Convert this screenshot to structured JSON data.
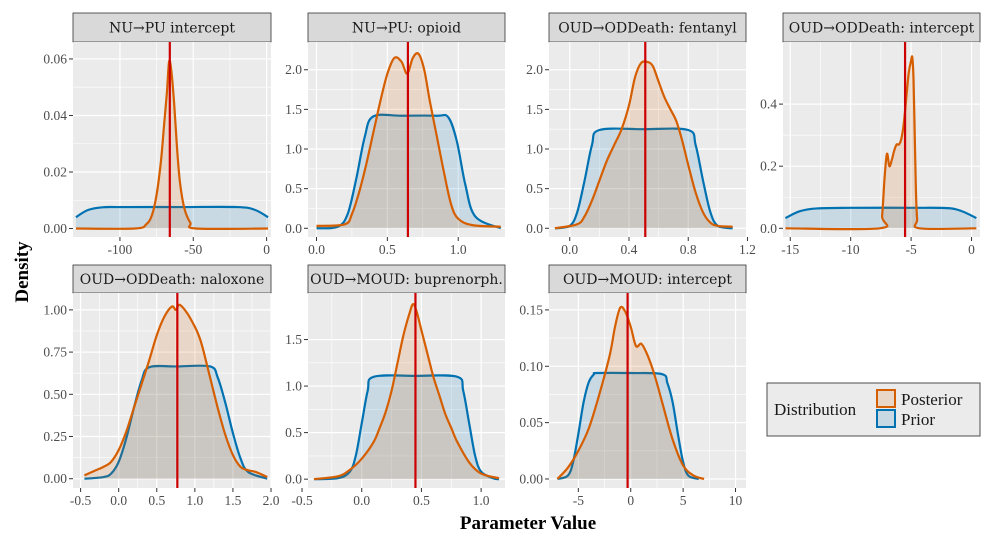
{
  "chart_data": {
    "type": "area",
    "xlabel": "Parameter Value",
    "ylabel": "Density",
    "legend": {
      "title": "Distribution",
      "position": "right",
      "entries": [
        {
          "name": "Posterior",
          "color": "#D55E00"
        },
        {
          "name": "Prior",
          "color": "#0072B2"
        }
      ]
    },
    "colors": {
      "posterior": "#D55E00",
      "prior": "#0072B2",
      "reference_line": "#CC0000",
      "panel_bg": "#EBEBEB",
      "strip_bg": "#D9D9D9"
    },
    "panels": [
      {
        "title": "NU→PU intercept",
        "xlim": [
          -132,
          3
        ],
        "ylim": [
          -0.003,
          0.066
        ],
        "xticks": [
          -100,
          -50,
          0
        ],
        "xtick_labels": [
          "-100",
          "-50",
          "0"
        ],
        "yticks": [
          0.0,
          0.02,
          0.04,
          0.06
        ],
        "ytick_labels": [
          "0.00",
          "0.02",
          "0.04",
          "0.06"
        ],
        "vline": -66,
        "prior": {
          "x": [
            -130,
            -122,
            -112,
            -100,
            -60,
            -20,
            -8,
            1
          ],
          "y": [
            0.004,
            0.0065,
            0.0075,
            0.0076,
            0.0076,
            0.0076,
            0.0066,
            0.004
          ]
        },
        "posterior": {
          "x": [
            -130,
            -90,
            -82,
            -78,
            -75,
            -72,
            -70,
            -68,
            -66.5,
            -65,
            -63,
            -61,
            -59,
            -56,
            -52,
            -48,
            1
          ],
          "y": [
            0.0,
            0.0,
            0.0015,
            0.005,
            0.012,
            0.024,
            0.036,
            0.048,
            0.059,
            0.056,
            0.044,
            0.028,
            0.016,
            0.007,
            0.002,
            0.0,
            0.0
          ]
        }
      },
      {
        "title": "NU→PU: opioid",
        "xlim": [
          -0.06,
          1.33
        ],
        "ylim": [
          -0.11,
          2.35
        ],
        "xticks": [
          0.0,
          0.5,
          1.0
        ],
        "xtick_labels": [
          "0.0",
          "0.5",
          "1.0"
        ],
        "yticks": [
          0.0,
          0.5,
          1.0,
          1.5,
          2.0
        ],
        "ytick_labels": [
          "0.0",
          "0.5",
          "1.0",
          "1.5",
          "2.0"
        ],
        "vline": 0.645,
        "prior": {
          "x": [
            0.0,
            0.15,
            0.22,
            0.28,
            0.34,
            0.4,
            0.6,
            0.85,
            0.93,
            0.99,
            1.05,
            1.12,
            1.3
          ],
          "y": [
            0.0,
            0.02,
            0.18,
            0.62,
            1.15,
            1.41,
            1.42,
            1.42,
            1.4,
            1.1,
            0.55,
            0.15,
            0.0
          ]
        },
        "posterior": {
          "x": [
            0.0,
            0.2,
            0.25,
            0.3,
            0.35,
            0.4,
            0.45,
            0.5,
            0.55,
            0.6,
            0.64,
            0.68,
            0.72,
            0.76,
            0.8,
            0.85,
            0.9,
            0.95,
            1.0,
            1.1,
            1.3
          ],
          "y": [
            0.03,
            0.05,
            0.18,
            0.45,
            0.8,
            1.2,
            1.6,
            1.95,
            2.15,
            2.1,
            1.95,
            2.15,
            2.2,
            2.0,
            1.6,
            1.15,
            0.7,
            0.3,
            0.12,
            0.04,
            0.02
          ]
        }
      },
      {
        "title": "OUD→ODDeath: fentanyl",
        "xlim": [
          -0.14,
          1.19
        ],
        "ylim": [
          -0.11,
          2.35
        ],
        "xticks": [
          0.0,
          0.4,
          0.8,
          1.2
        ],
        "xtick_labels": [
          "0.0",
          "0.4",
          "0.8",
          "1.2"
        ],
        "yticks": [
          0.0,
          0.5,
          1.0,
          1.5,
          2.0
        ],
        "ytick_labels": [
          "0.0",
          "0.5",
          "1.0",
          "1.5",
          "2.0"
        ],
        "vline": 0.51,
        "prior": {
          "x": [
            -0.1,
            0.0,
            0.05,
            0.1,
            0.15,
            0.2,
            0.5,
            0.8,
            0.85,
            0.9,
            0.95,
            1.0,
            1.1
          ],
          "y": [
            0.0,
            0.03,
            0.2,
            0.6,
            1.05,
            1.24,
            1.25,
            1.24,
            1.05,
            0.6,
            0.2,
            0.03,
            0.0
          ]
        },
        "posterior": {
          "x": [
            -0.1,
            0.05,
            0.1,
            0.15,
            0.2,
            0.25,
            0.3,
            0.35,
            0.4,
            0.44,
            0.48,
            0.52,
            0.56,
            0.6,
            0.64,
            0.68,
            0.72,
            0.76,
            0.8,
            0.85,
            0.9,
            0.95,
            1.0,
            1.1
          ],
          "y": [
            0.0,
            0.05,
            0.15,
            0.35,
            0.6,
            0.85,
            1.05,
            1.25,
            1.55,
            1.9,
            2.08,
            2.1,
            2.05,
            1.85,
            1.65,
            1.5,
            1.35,
            1.1,
            0.8,
            0.45,
            0.2,
            0.07,
            0.03,
            0.02
          ]
        }
      },
      {
        "title": "OUD→ODDeath: intercept",
        "xlim": [
          -15.6,
          0.7
        ],
        "ylim": [
          -0.028,
          0.6
        ],
        "xticks": [
          -15,
          -10,
          -5,
          0
        ],
        "xtick_labels": [
          "-15",
          "-10",
          "-5",
          "0"
        ],
        "yticks": [
          0.0,
          0.2,
          0.4
        ],
        "ytick_labels": [
          "0.0",
          "0.2",
          "0.4"
        ],
        "vline": -5.5,
        "prior": {
          "x": [
            -15.4,
            -14.2,
            -12.8,
            -10,
            -5,
            -2,
            -0.8,
            0.4
          ],
          "y": [
            0.033,
            0.055,
            0.064,
            0.066,
            0.066,
            0.065,
            0.055,
            0.033
          ]
        },
        "posterior": {
          "x": [
            -15.4,
            -7.6,
            -7.4,
            -7.2,
            -7.0,
            -6.8,
            -6.6,
            -6.4,
            -6.2,
            -6.0,
            -5.8,
            -5.6,
            -5.4,
            -5.2,
            -5.0,
            -4.9,
            -4.8,
            -4.7,
            -4.6,
            -4.5,
            -4.3,
            0.4
          ],
          "y": [
            0.0,
            0.0,
            0.04,
            0.16,
            0.24,
            0.2,
            0.22,
            0.25,
            0.27,
            0.27,
            0.29,
            0.34,
            0.42,
            0.5,
            0.54,
            0.55,
            0.48,
            0.3,
            0.12,
            0.03,
            0.0,
            0.0
          ]
        }
      },
      {
        "title": "OUD→ODDeath: naloxone",
        "xlim": [
          -0.6,
          2.0
        ],
        "ylim": [
          -0.055,
          1.1
        ],
        "xticks": [
          -0.5,
          0.0,
          0.5,
          1.0,
          1.5,
          2.0
        ],
        "xtick_labels": [
          "-0.5",
          "0.0",
          "0.5",
          "1.0",
          "1.5",
          "2.0"
        ],
        "yticks": [
          0.0,
          0.25,
          0.5,
          0.75,
          1.0
        ],
        "ytick_labels": [
          "0.00",
          "0.25",
          "0.50",
          "0.75",
          "1.00"
        ],
        "vline": 0.77,
        "prior": {
          "x": [
            -0.45,
            -0.2,
            -0.1,
            0.0,
            0.1,
            0.2,
            0.3,
            0.4,
            0.77,
            1.2,
            1.3,
            1.4,
            1.5,
            1.6,
            1.7,
            1.95
          ],
          "y": [
            0.0,
            0.01,
            0.03,
            0.1,
            0.24,
            0.42,
            0.58,
            0.66,
            0.665,
            0.665,
            0.6,
            0.45,
            0.27,
            0.12,
            0.04,
            0.0
          ]
        },
        "posterior": {
          "x": [
            -0.45,
            -0.3,
            -0.2,
            -0.1,
            0.0,
            0.1,
            0.2,
            0.3,
            0.4,
            0.5,
            0.6,
            0.7,
            0.75,
            0.8,
            0.9,
            1.0,
            1.05,
            1.1,
            1.2,
            1.3,
            1.4,
            1.5,
            1.6,
            1.7,
            1.8,
            1.95
          ],
          "y": [
            0.02,
            0.05,
            0.07,
            0.1,
            0.17,
            0.28,
            0.42,
            0.56,
            0.7,
            0.85,
            0.96,
            1.02,
            1.0,
            1.03,
            0.98,
            0.9,
            0.85,
            0.78,
            0.6,
            0.42,
            0.26,
            0.14,
            0.07,
            0.05,
            0.04,
            0.01
          ]
        }
      },
      {
        "title": "OUD→MOUD: buprenorph.",
        "xlim": [
          -0.45,
          1.2
        ],
        "ylim": [
          -0.095,
          2.0
        ],
        "xticks": [
          -0.5,
          0.0,
          0.5,
          1.0
        ],
        "xtick_labels": [
          "-0.5",
          "0.0",
          "0.5",
          "1.0"
        ],
        "yticks": [
          0.0,
          0.5,
          1.0,
          1.5
        ],
        "ytick_labels": [
          "0.0",
          "0.5",
          "1.0",
          "1.5"
        ],
        "vline": 0.45,
        "prior": {
          "x": [
            -0.4,
            -0.2,
            -0.1,
            -0.05,
            0.0,
            0.05,
            0.1,
            0.45,
            0.8,
            0.85,
            0.9,
            0.95,
            1.0,
            1.1,
            1.15
          ],
          "y": [
            0.0,
            0.01,
            0.08,
            0.25,
            0.6,
            0.95,
            1.1,
            1.11,
            1.1,
            0.95,
            0.6,
            0.25,
            0.08,
            0.01,
            0.0
          ]
        },
        "posterior": {
          "x": [
            -0.4,
            -0.2,
            -0.1,
            0.0,
            0.1,
            0.15,
            0.2,
            0.25,
            0.3,
            0.35,
            0.4,
            0.43,
            0.46,
            0.5,
            0.55,
            0.6,
            0.65,
            0.7,
            0.75,
            0.8,
            0.9,
            1.0,
            1.15
          ],
          "y": [
            0.0,
            0.03,
            0.1,
            0.22,
            0.4,
            0.55,
            0.72,
            0.95,
            1.25,
            1.55,
            1.78,
            1.88,
            1.8,
            1.6,
            1.35,
            1.1,
            0.9,
            0.7,
            0.55,
            0.4,
            0.18,
            0.06,
            0.01
          ]
        }
      },
      {
        "title": "OUD→MOUD: intercept",
        "xlim": [
          -7.8,
          11.0
        ],
        "ylim": [
          -0.008,
          0.165
        ],
        "xticks": [
          -5,
          0,
          5,
          10
        ],
        "xtick_labels": [
          "-5",
          "0",
          "5",
          "10"
        ],
        "yticks": [
          0.0,
          0.05,
          0.1,
          0.15
        ],
        "ytick_labels": [
          "0.00",
          "0.05",
          "0.10",
          "0.15"
        ],
        "vline": -0.3,
        "prior": {
          "x": [
            -7.0,
            -6.0,
            -5.5,
            -5.0,
            -4.5,
            -4.0,
            -3.5,
            -3.2,
            0.0,
            3.0,
            3.5,
            4.0,
            4.5,
            5.0,
            5.5,
            6.5
          ],
          "y": [
            0.0,
            0.003,
            0.015,
            0.04,
            0.068,
            0.086,
            0.093,
            0.094,
            0.094,
            0.093,
            0.085,
            0.068,
            0.04,
            0.015,
            0.003,
            0.0
          ]
        },
        "posterior": {
          "x": [
            -7.0,
            -6.0,
            -5.0,
            -4.0,
            -3.0,
            -2.0,
            -1.5,
            -1.0,
            -0.5,
            0.0,
            0.5,
            1.0,
            1.5,
            2.0,
            2.5,
            3.0,
            4.0,
            5.0,
            6.0,
            7.0
          ],
          "y": [
            0.0,
            0.01,
            0.025,
            0.045,
            0.075,
            0.11,
            0.135,
            0.152,
            0.148,
            0.135,
            0.118,
            0.12,
            0.112,
            0.1,
            0.085,
            0.068,
            0.035,
            0.012,
            0.003,
            0.0
          ]
        }
      }
    ]
  }
}
